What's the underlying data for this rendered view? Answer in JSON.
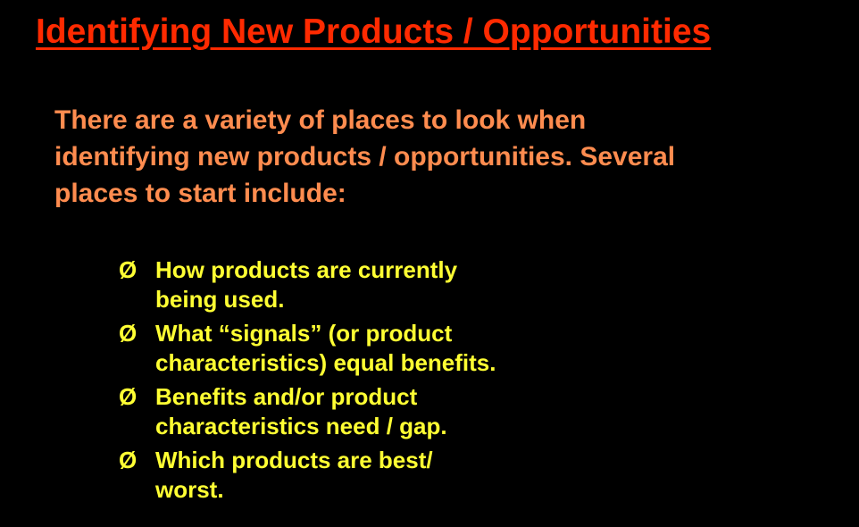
{
  "slide": {
    "title": "Identifying New Products / Opportunities",
    "intro_lines": [
      "There are a variety of places to look when",
      "identifying new products / opportunities.  Several",
      "places to start include:"
    ],
    "bullet_marker": "Ø",
    "bullets": [
      {
        "lines": [
          "How products are currently",
          "being used."
        ]
      },
      {
        "lines": [
          "What “signals” (or product",
          "characteristics) equal benefits."
        ]
      },
      {
        "lines": [
          "Benefits and/or product",
          "characteristics need / gap."
        ]
      },
      {
        "lines": [
          "Which products are best/",
          "worst."
        ]
      }
    ]
  },
  "colors": {
    "background": "#000000",
    "title": "#ff2a00",
    "intro": "#ff8c4f",
    "bullets": "#ffff33"
  }
}
